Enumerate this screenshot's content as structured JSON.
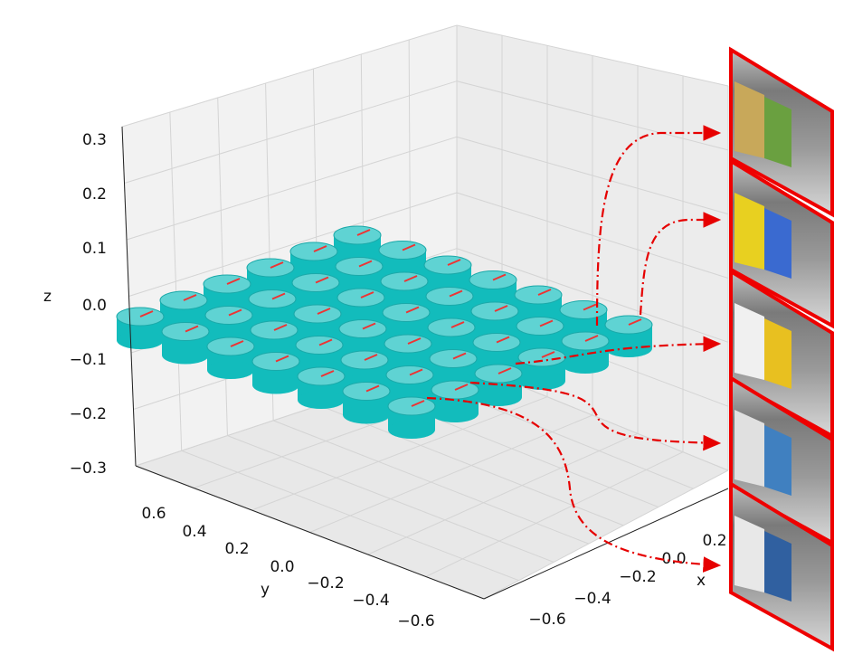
{
  "axes": {
    "z_label": "z",
    "y_label": "y",
    "x_label": "x",
    "z_ticks": [
      "0.3",
      "0.2",
      "0.1",
      "0.0",
      "−0.1",
      "−0.2",
      "−0.3"
    ],
    "y_ticks": [
      "0.6",
      "0.4",
      "0.2",
      "0.0",
      "−0.2",
      "−0.4",
      "−0.6"
    ],
    "x_ticks": [
      "−0.6",
      "−0.4",
      "−0.2",
      "0.0",
      "0.2"
    ]
  }
}
